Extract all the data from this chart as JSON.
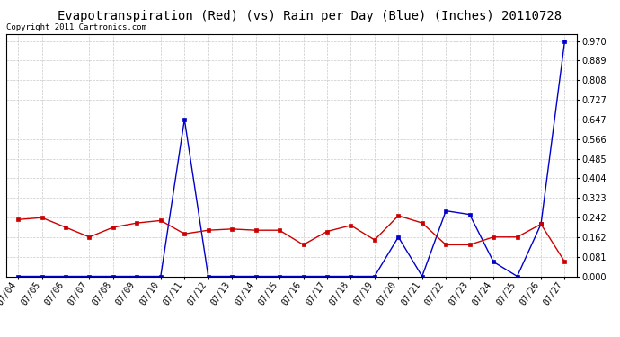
{
  "title": "Evapotranspiration (Red) (vs) Rain per Day (Blue) (Inches) 20110728",
  "copyright": "Copyright 2011 Cartronics.com",
  "dates": [
    "07/04",
    "07/05",
    "07/06",
    "07/07",
    "07/08",
    "07/09",
    "07/10",
    "07/11",
    "07/12",
    "07/13",
    "07/14",
    "07/15",
    "07/16",
    "07/17",
    "07/18",
    "07/19",
    "07/20",
    "07/21",
    "07/22",
    "07/23",
    "07/24",
    "07/25",
    "07/26",
    "07/27"
  ],
  "evapotranspiration": [
    0.234,
    0.242,
    0.202,
    0.162,
    0.202,
    0.22,
    0.23,
    0.175,
    0.19,
    0.195,
    0.19,
    0.19,
    0.13,
    0.185,
    0.21,
    0.15,
    0.25,
    0.22,
    0.13,
    0.13,
    0.162,
    0.162,
    0.215,
    0.06
  ],
  "rain": [
    0.0,
    0.0,
    0.0,
    0.0,
    0.0,
    0.0,
    0.0,
    0.647,
    0.0,
    0.0,
    0.0,
    0.0,
    0.0,
    0.0,
    0.0,
    0.0,
    0.162,
    0.0,
    0.27,
    0.255,
    0.06,
    0.0,
    0.215,
    0.97
  ],
  "ylim": [
    0.0,
    1.0
  ],
  "yticks": [
    0.0,
    0.081,
    0.162,
    0.242,
    0.323,
    0.404,
    0.485,
    0.566,
    0.647,
    0.727,
    0.808,
    0.889,
    0.97
  ],
  "red_color": "#cc0000",
  "blue_color": "#0000cc",
  "bg_color": "#ffffff",
  "grid_color": "#bbbbbb",
  "title_fontsize": 10,
  "copyright_fontsize": 6.5,
  "tick_fontsize": 7,
  "marker": "s",
  "markersize": 2.5,
  "linewidth": 1.0
}
